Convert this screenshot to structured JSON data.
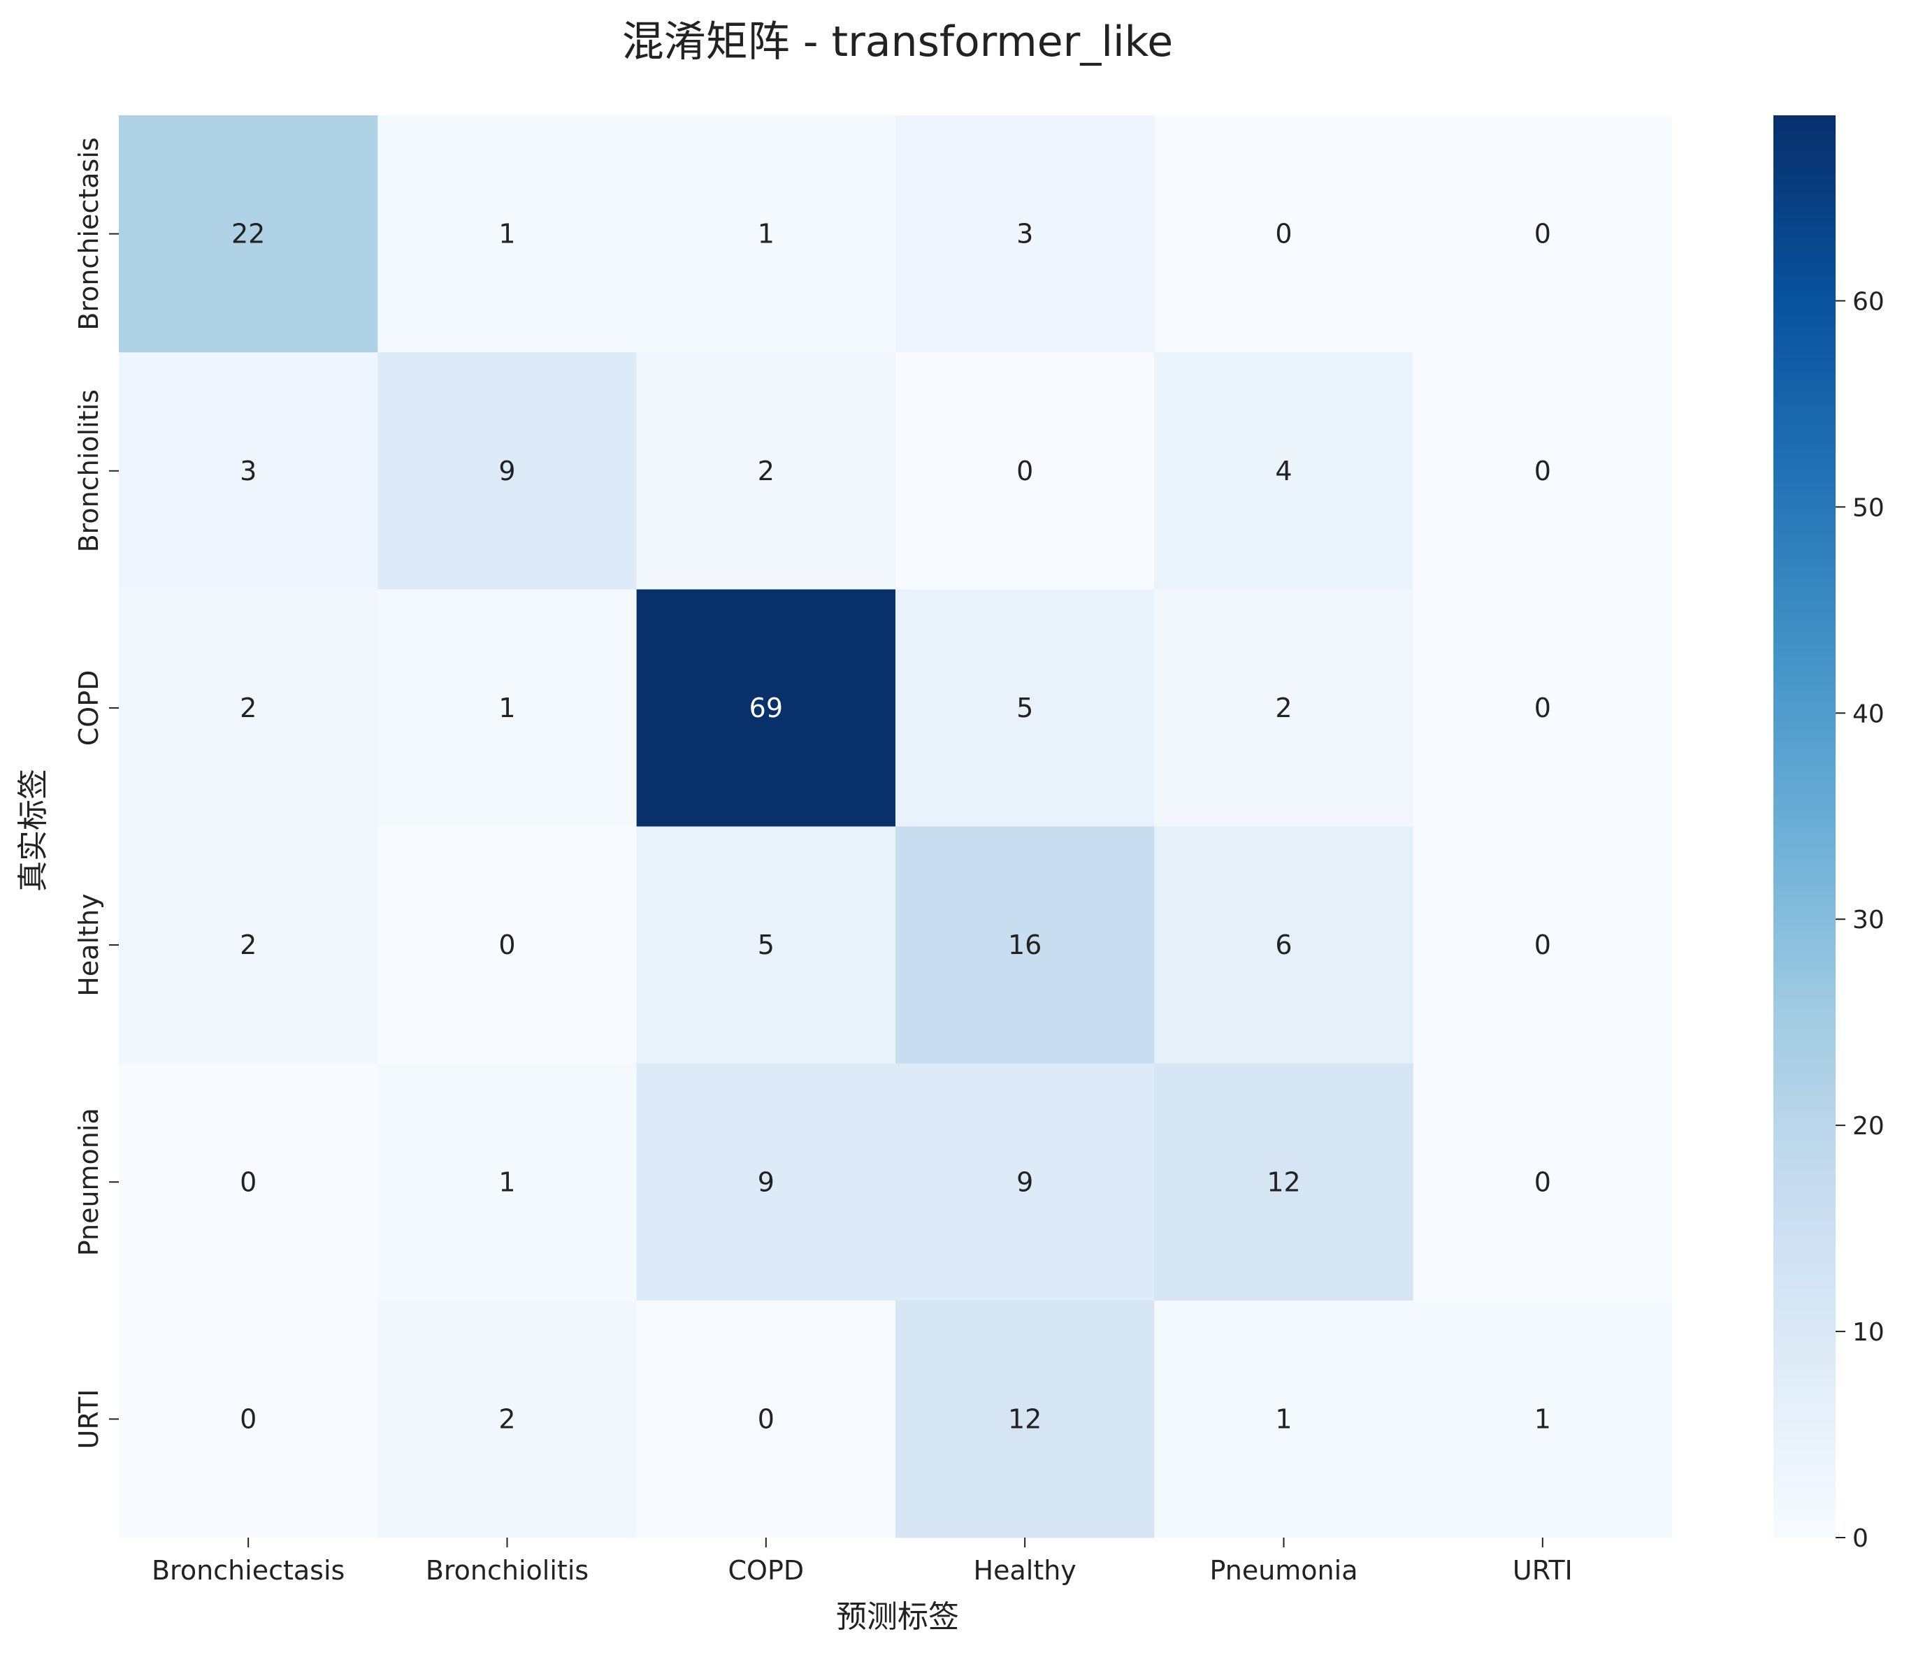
{
  "chart_data": {
    "type": "heatmap",
    "title": "混淆矩阵 - transformer_like",
    "xlabel": "预测标签",
    "ylabel": "真实标签",
    "x_categories": [
      "Bronchiectasis",
      "Bronchiolitis",
      "COPD",
      "Healthy",
      "Pneumonia",
      "URTI"
    ],
    "y_categories": [
      "Bronchiectasis",
      "Bronchiolitis",
      "COPD",
      "Healthy",
      "Pneumonia",
      "URTI"
    ],
    "values": [
      [
        22,
        1,
        1,
        3,
        0,
        0
      ],
      [
        3,
        9,
        2,
        0,
        4,
        0
      ],
      [
        2,
        1,
        69,
        5,
        2,
        0
      ],
      [
        2,
        0,
        5,
        16,
        6,
        0
      ],
      [
        0,
        1,
        9,
        9,
        12,
        0
      ],
      [
        0,
        2,
        0,
        12,
        1,
        1
      ]
    ],
    "colormap": "Blues",
    "color_range": [
      0,
      69
    ],
    "colorbar_ticks": [
      0,
      10,
      20,
      30,
      40,
      50,
      60
    ],
    "colors": {
      "low": "#f7fbff",
      "high": "#08306b"
    }
  }
}
